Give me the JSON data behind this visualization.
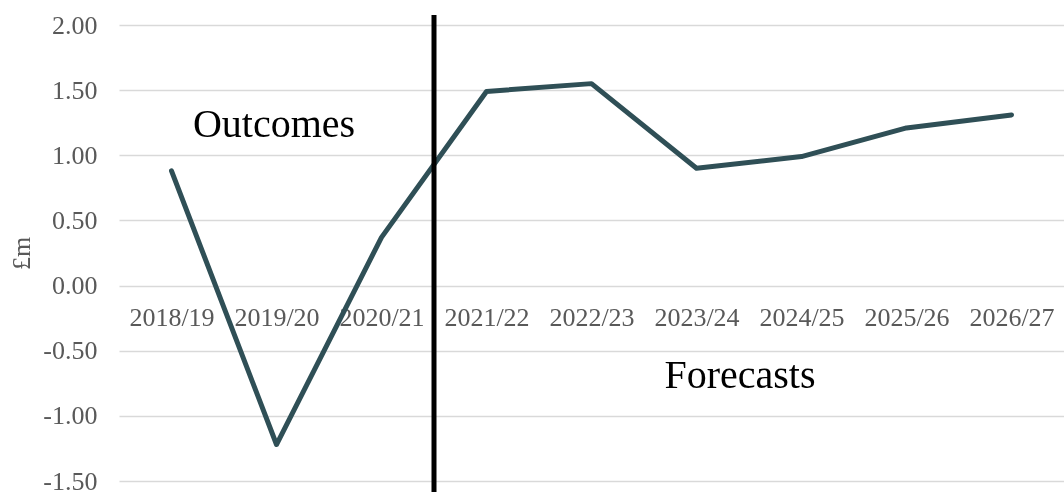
{
  "chart_data": {
    "type": "line",
    "ylabel": "£m",
    "categories": [
      "2018/19",
      "2019/20",
      "2020/21",
      "2021/22",
      "2022/23",
      "2023/24",
      "2024/25",
      "2025/26",
      "2026/27"
    ],
    "series": [
      {
        "color": "#2f4f56",
        "values": [
          0.88,
          -1.22,
          0.37,
          1.49,
          1.55,
          0.9,
          0.99,
          1.21,
          1.31
        ]
      }
    ],
    "ylim": [
      -1.5,
      2
    ],
    "yticks": [
      {
        "value": -1.5,
        "label": "-1.50"
      },
      {
        "value": -1,
        "label": "-1.00"
      },
      {
        "value": -0.5,
        "label": "-0.50"
      },
      {
        "value": 0,
        "label": "0.00"
      },
      {
        "value": 0.5,
        "label": "0.50"
      },
      {
        "value": 1,
        "label": "1.00"
      },
      {
        "value": 1.5,
        "label": "1.50"
      },
      {
        "value": 2,
        "label": "2.00"
      }
    ],
    "grid": "y",
    "marker": "none",
    "line_style": "solid",
    "ref_lines": [
      {
        "axis": "x",
        "value": "2020/21",
        "color": "#000000"
      }
    ],
    "annotations": [
      "Outcomes",
      "Forecasts"
    ]
  }
}
